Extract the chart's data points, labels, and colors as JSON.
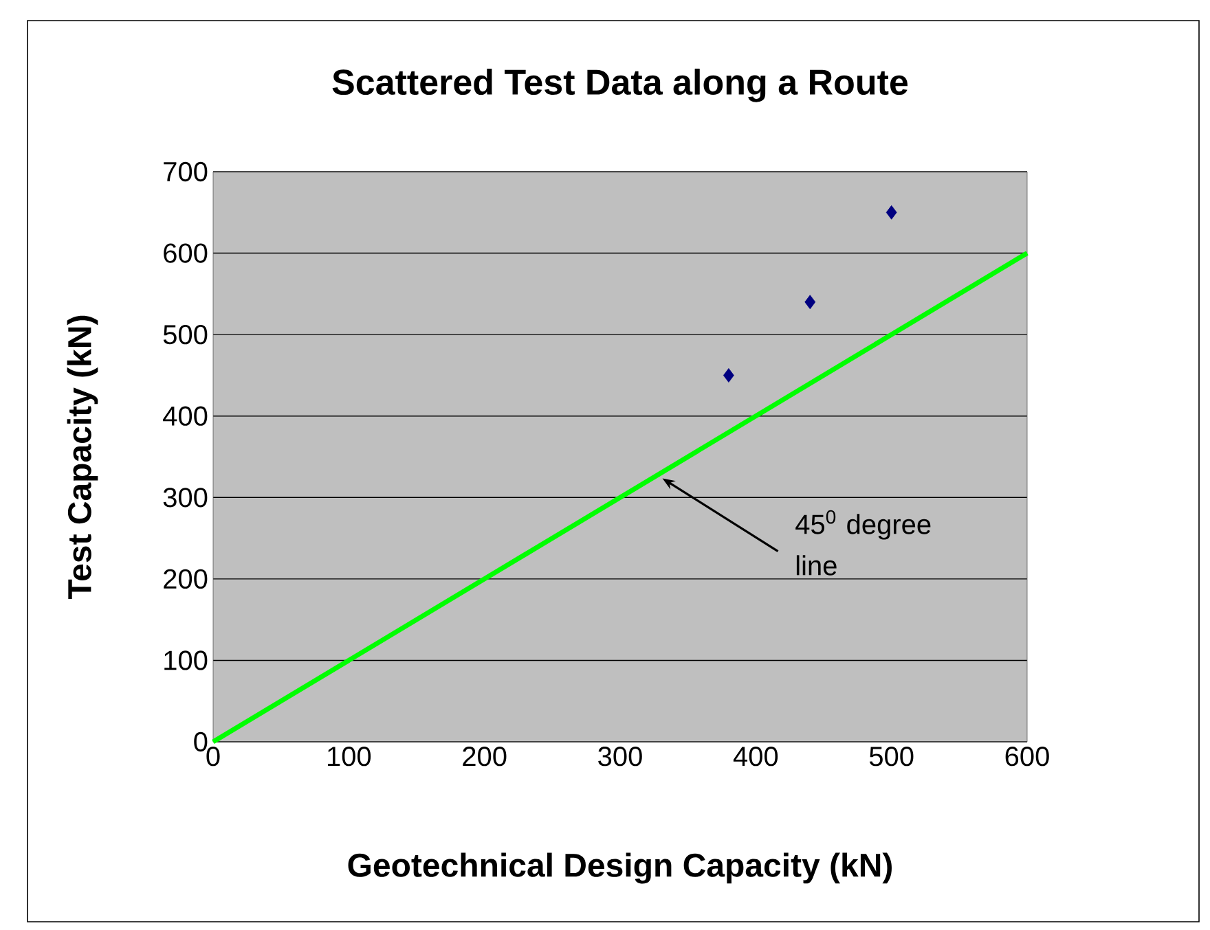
{
  "chart_data": {
    "type": "scatter",
    "title": "Scattered Test Data along a Route",
    "xlabel": "Geotechnical Design Capacity (kN)",
    "ylabel": "Test Capacity (kN)",
    "x": [
      380,
      440,
      500
    ],
    "series": [
      {
        "color": "#000080",
        "values": [
          450,
          540,
          650
        ]
      },
      {
        "type": "line",
        "marker": "none",
        "color": "#00ff00",
        "x": [
          0,
          600
        ],
        "values": [
          0,
          600
        ]
      }
    ],
    "xlim": [
      0,
      600
    ],
    "ylim": [
      0,
      700
    ],
    "xticks": [
      0,
      100,
      200,
      300,
      400,
      500,
      600
    ],
    "yticks": [
      0,
      100,
      200,
      300,
      400,
      500,
      600,
      700
    ],
    "grid": "y",
    "marker": "diamond",
    "line_style": "solid",
    "annotations": [
      {
        "text": "45$^{0}$ degree line",
        "x": 332,
        "y": 322
      }
    ]
  }
}
